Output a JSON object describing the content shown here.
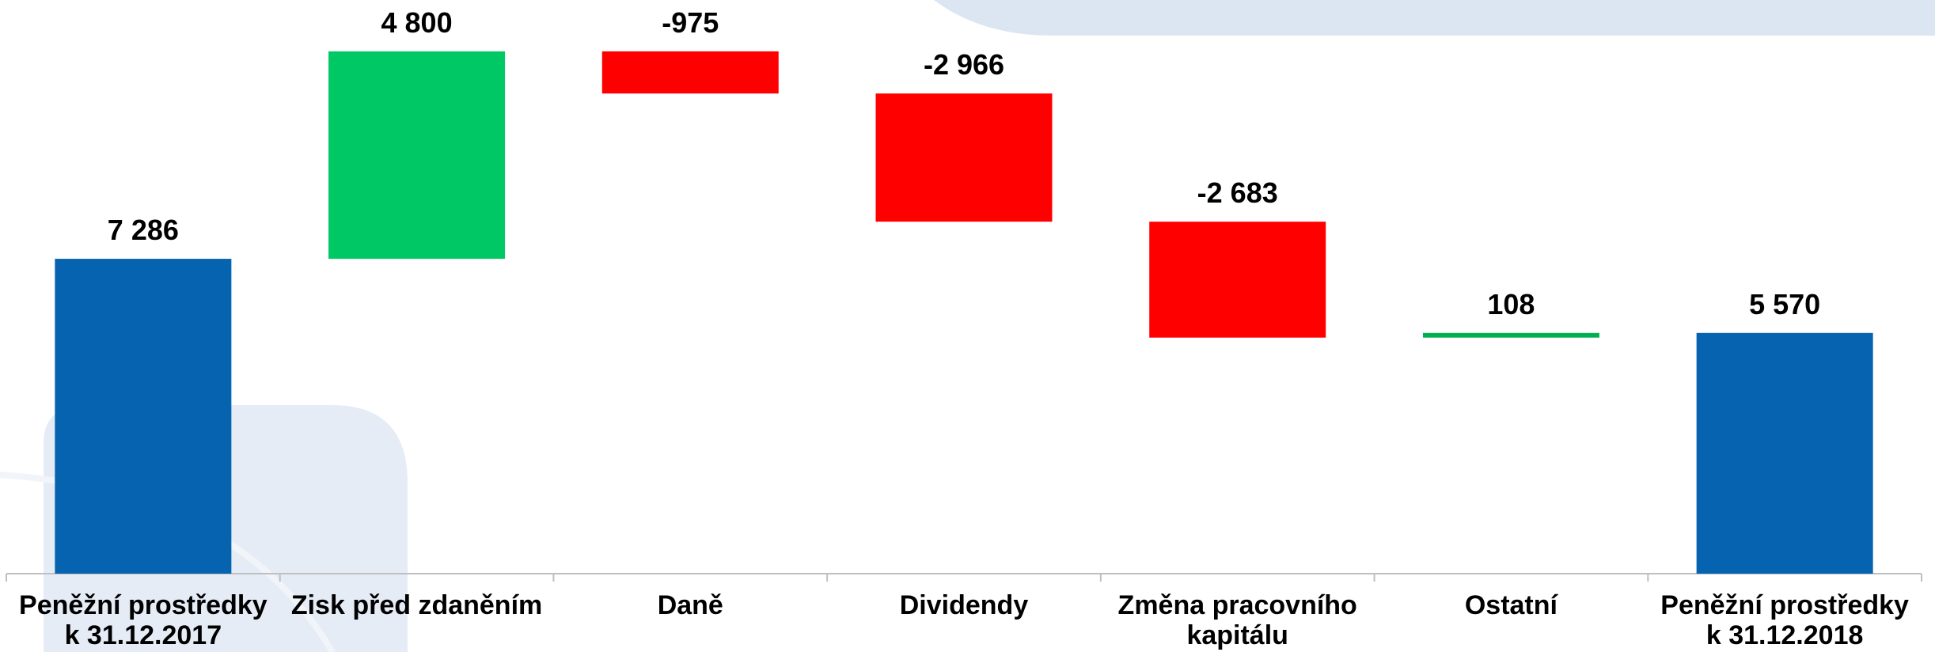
{
  "chart_data": {
    "type": "waterfall",
    "categories": [
      "Peněžní prostředky\nk 31.12.2017",
      "Zisk před zdaněním",
      "Daně",
      "Dividendy",
      "Změna pracovního\nkapitálu",
      "Ostatní",
      "Peněžní prostředky\nk 31.12.2018"
    ],
    "values": [
      7286,
      4800,
      -975,
      -2966,
      -2683,
      108,
      5570
    ],
    "value_labels": [
      "7 286",
      "4 800",
      "-975",
      "-2 966",
      "-2 683",
      "108",
      "5 570"
    ],
    "measure": [
      "total",
      "relative",
      "relative",
      "relative",
      "relative",
      "relative",
      "total"
    ],
    "colors": [
      "#0563b0",
      "#00c864",
      "#ff0000",
      "#ff0000",
      "#ff0000",
      "#00b050",
      "#0563b0"
    ],
    "ylim": [
      0,
      13000
    ]
  }
}
